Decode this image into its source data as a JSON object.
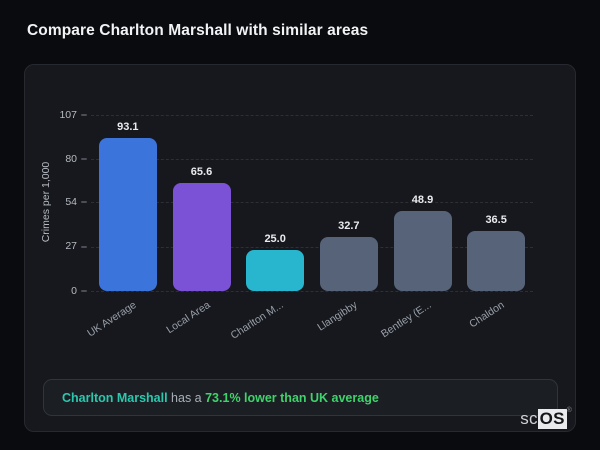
{
  "page": {
    "title": "Compare Charlton Marshall with similar areas"
  },
  "chart_data": {
    "type": "bar",
    "title": "Compare Charlton Marshall with similar areas",
    "xlabel": "",
    "ylabel": "Crimes per 1,000",
    "ylim": [
      0,
      107
    ],
    "yticks": [
      0,
      27,
      54,
      80,
      107
    ],
    "grid": "horizontal-dashed",
    "legend": "none",
    "categories": [
      "UK Average",
      "Local Area",
      "Charlton M...",
      "Llangibby",
      "Bentley (E...",
      "Chaldon"
    ],
    "values": [
      93.1,
      65.6,
      25.0,
      32.7,
      48.9,
      36.5
    ],
    "value_labels": [
      "93.1",
      "65.6",
      "25.0",
      "32.7",
      "48.9",
      "36.5"
    ],
    "bar_colors": [
      "#3b74da",
      "#7b52d6",
      "#27b6ce",
      "#566379",
      "#566379",
      "#566379"
    ]
  },
  "note": {
    "area_name": "Charlton Marshall",
    "middle_text": " has a ",
    "highlight_text": "73.1% lower than UK average",
    "area_color": "#2bc8ae",
    "highlight_color": "#3fd36c"
  },
  "logo": {
    "prefix": "sc",
    "suffix": "OS",
    "registered": "®"
  }
}
